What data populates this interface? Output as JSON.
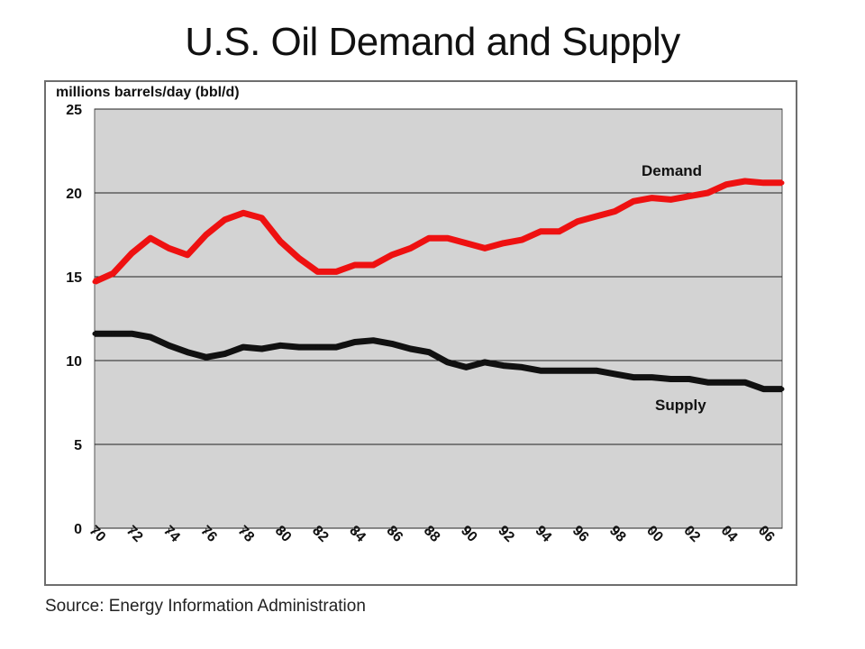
{
  "title": "U.S. Oil Demand and Supply",
  "source": "Source: Energy Information Administration",
  "chart_data": {
    "type": "line",
    "title": "U.S. Oil Demand and Supply",
    "ylabel": "millions barrels/day (bbl/d)",
    "xlabel": "",
    "x": [
      1970,
      1971,
      1972,
      1973,
      1974,
      1975,
      1976,
      1977,
      1978,
      1979,
      1980,
      1981,
      1982,
      1983,
      1984,
      1985,
      1986,
      1987,
      1988,
      1989,
      1990,
      1991,
      1992,
      1993,
      1994,
      1995,
      1996,
      1997,
      1998,
      1999,
      2000,
      2001,
      2002,
      2003,
      2004,
      2005,
      2006,
      2007
    ],
    "x_tick_labels": [
      "70",
      "72",
      "74",
      "76",
      "78",
      "80",
      "82",
      "84",
      "86",
      "88",
      "90",
      "92",
      "94",
      "96",
      "98",
      "00",
      "02",
      "04",
      "06"
    ],
    "ylim": [
      0,
      25
    ],
    "y_ticks": [
      0,
      5,
      10,
      15,
      20,
      25
    ],
    "grid": "horizontal",
    "plot_background": "#d3d3d3",
    "series": [
      {
        "name": "Demand",
        "color": "#ee1111",
        "values": [
          14.7,
          15.2,
          16.4,
          17.3,
          16.7,
          16.3,
          17.5,
          18.4,
          18.8,
          18.5,
          17.1,
          16.1,
          15.3,
          15.3,
          15.7,
          15.7,
          16.3,
          16.7,
          17.3,
          17.3,
          17.0,
          16.7,
          17.0,
          17.2,
          17.7,
          17.7,
          18.3,
          18.6,
          18.9,
          19.5,
          19.7,
          19.6,
          19.8,
          20.0,
          20.5,
          20.7,
          20.6,
          20.6
        ]
      },
      {
        "name": "Supply",
        "color": "#111111",
        "values": [
          11.6,
          11.6,
          11.6,
          11.4,
          10.9,
          10.5,
          10.2,
          10.4,
          10.8,
          10.7,
          10.9,
          10.8,
          10.8,
          10.8,
          11.1,
          11.2,
          11.0,
          10.7,
          10.5,
          9.9,
          9.6,
          9.9,
          9.7,
          9.6,
          9.4,
          9.4,
          9.4,
          9.4,
          9.2,
          9.0,
          9.0,
          8.9,
          8.9,
          8.7,
          8.7,
          8.7,
          8.3,
          8.3
        ]
      }
    ]
  }
}
